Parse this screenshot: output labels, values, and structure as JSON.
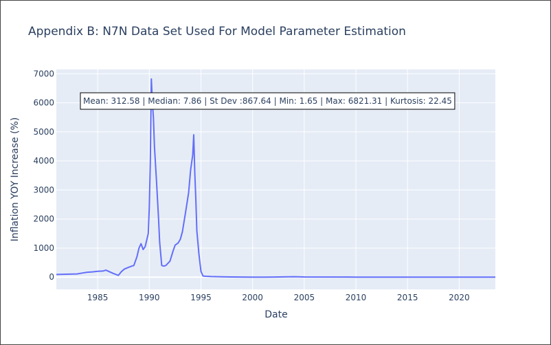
{
  "chart_data": {
    "type": "line",
    "title": "Appendix B: N7N Data Set Used For Model Parameter Estimation",
    "xlabel": "Date",
    "ylabel": "Inflation YOY Increase (%)",
    "xlim": [
      1981,
      2023.5
    ],
    "ylim": [
      -420,
      7150
    ],
    "x_ticks": [
      1985,
      1990,
      1995,
      2000,
      2005,
      2010,
      2015,
      2020
    ],
    "y_ticks": [
      0,
      1000,
      2000,
      3000,
      4000,
      5000,
      6000,
      7000
    ],
    "grid": true,
    "line_color": "#636efa",
    "plot_bg": "#e5ecf6",
    "annotation": "Mean: 312.58 | Median: 7.86 | St Dev :867.64 | Min: 1.65 | Max: 6821.31 | Kurtosis: 22.45",
    "series": [
      {
        "x": [
          1981.0,
          1982.0,
          1983.0,
          1983.5,
          1984.0,
          1984.5,
          1985.0,
          1985.5,
          1985.8,
          1986.0,
          1986.5,
          1987.0,
          1987.3,
          1987.6,
          1988.0,
          1988.3,
          1988.5,
          1988.8,
          1989.0,
          1989.2,
          1989.4,
          1989.6,
          1989.9,
          1990.0,
          1990.1,
          1990.2,
          1990.3,
          1990.4,
          1990.5,
          1990.7,
          1990.9,
          1991.0,
          1991.2,
          1991.4,
          1991.6,
          1992.0,
          1992.3,
          1992.5,
          1992.8,
          1993.0,
          1993.2,
          1993.5,
          1993.8,
          1994.0,
          1994.2,
          1994.3,
          1994.4,
          1994.5,
          1994.6,
          1994.8,
          1995.0,
          1995.2,
          1995.5,
          1996.0,
          1997.0,
          1998.0,
          1999.0,
          2000.0,
          2001.0,
          2002.0,
          2003.0,
          2004.0,
          2005.0,
          2010.0,
          2015.0,
          2020.0,
          2023.5
        ],
        "y": [
          90,
          100,
          110,
          140,
          170,
          180,
          200,
          210,
          240,
          210,
          130,
          60,
          190,
          280,
          340,
          380,
          400,
          700,
          1000,
          1150,
          950,
          1050,
          1500,
          2400,
          4000,
          6821,
          6000,
          5500,
          4500,
          3300,
          2000,
          1200,
          400,
          380,
          400,
          550,
          900,
          1100,
          1180,
          1300,
          1550,
          2200,
          2900,
          3700,
          4200,
          4900,
          3600,
          2700,
          1600,
          800,
          200,
          40,
          30,
          20,
          10,
          5,
          3,
          2,
          2,
          4,
          8,
          15,
          5,
          2,
          2,
          2,
          2
        ]
      }
    ]
  }
}
